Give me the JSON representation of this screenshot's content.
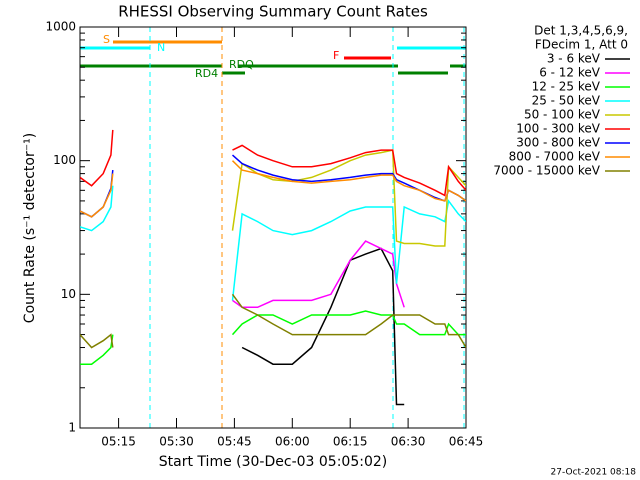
{
  "chart_data": {
    "type": "line",
    "title": "RHESSI Observing Summary Count Rates",
    "x_label": "Start Time (30-Dec-03 05:05:02)",
    "y_label": "Count Rate (s⁻¹ detector⁻¹)",
    "legend_header": [
      "Det 1,3,4,5,6,9,",
      "FDecim 1, Att 0"
    ],
    "footer": "27-Oct-2021 08:18",
    "flag_labels": [
      "S",
      "N",
      "F",
      "RDQ",
      "RD4"
    ],
    "log_y": true,
    "xlim": [
      0,
      100
    ],
    "ylim": [
      1,
      1000
    ],
    "xticks": [
      {
        "value": 10,
        "label": "05:15"
      },
      {
        "value": 25,
        "label": "05:30"
      },
      {
        "value": 40,
        "label": "05:45"
      },
      {
        "value": 55,
        "label": "06:00"
      },
      {
        "value": 70,
        "label": "06:15"
      },
      {
        "value": 85,
        "label": "06:30"
      },
      {
        "value": 100,
        "label": "06:45"
      }
    ],
    "yticks": [
      1,
      10,
      100,
      1000
    ],
    "x": [
      0,
      3,
      6,
      8,
      8.5,
      20,
      39.5,
      42,
      46,
      50,
      55,
      60,
      65,
      70,
      74,
      78,
      81,
      82,
      84,
      88,
      92,
      94.5,
      95.5,
      98,
      100
    ],
    "series": [
      {
        "name": "3 - 6 keV",
        "color": "#000000",
        "values": [
          null,
          null,
          null,
          null,
          null,
          null,
          null,
          4,
          3.5,
          3,
          3,
          4,
          8,
          18,
          20,
          22,
          15,
          1.5,
          1.5,
          null,
          null,
          null,
          null,
          null,
          null
        ]
      },
      {
        "name": "6 - 12 keV",
        "color": "#ff00ff",
        "values": [
          null,
          null,
          null,
          null,
          null,
          null,
          9,
          8,
          8,
          9,
          9,
          9,
          10,
          18,
          25,
          22,
          20,
          12,
          8,
          null,
          null,
          null,
          null,
          null,
          null
        ]
      },
      {
        "name": "12 - 25 keV",
        "color": "#00ff00",
        "values": [
          3,
          3,
          3.5,
          4,
          5,
          null,
          5,
          6,
          7,
          7,
          6,
          7,
          7,
          7,
          7.5,
          7,
          7,
          6,
          6,
          5,
          5,
          5,
          6,
          5,
          5
        ]
      },
      {
        "name": "25 - 50 keV",
        "color": "#00ffff",
        "values": [
          32,
          30,
          35,
          45,
          65,
          null,
          9,
          40,
          35,
          30,
          28,
          30,
          35,
          42,
          45,
          45,
          45,
          12,
          45,
          40,
          38,
          35,
          50,
          40,
          35
        ]
      },
      {
        "name": "50 - 100 keV",
        "color": "#c8c800",
        "values": [
          null,
          null,
          null,
          null,
          null,
          null,
          30,
          95,
          80,
          72,
          70,
          75,
          85,
          100,
          110,
          115,
          120,
          25,
          24,
          24,
          23,
          23,
          90,
          75,
          65
        ]
      },
      {
        "name": "100 - 300 keV",
        "color": "#ff0000",
        "values": [
          75,
          65,
          80,
          110,
          170,
          null,
          120,
          130,
          110,
          100,
          90,
          90,
          95,
          105,
          115,
          120,
          120,
          80,
          75,
          68,
          60,
          55,
          90,
          70,
          60
        ]
      },
      {
        "name": "300 - 800 keV",
        "color": "#0000ff",
        "values": [
          42,
          38,
          45,
          62,
          85,
          null,
          110,
          95,
          85,
          78,
          72,
          70,
          72,
          75,
          78,
          80,
          80,
          72,
          68,
          60,
          53,
          50,
          60,
          55,
          50
        ]
      },
      {
        "name": "800 - 7000 keV",
        "color": "#ff8c00",
        "values": [
          42,
          38,
          45,
          60,
          80,
          null,
          100,
          85,
          80,
          75,
          70,
          68,
          70,
          72,
          75,
          78,
          78,
          70,
          65,
          60,
          52,
          50,
          60,
          55,
          50
        ]
      },
      {
        "name": "7000 - 15000 keV",
        "color": "#808000",
        "values": [
          5,
          4,
          4.5,
          5,
          4,
          null,
          10,
          8,
          7,
          6,
          5,
          5,
          5,
          5,
          5,
          6,
          7,
          7,
          7,
          7,
          6,
          6,
          5,
          5,
          4
        ]
      }
    ]
  }
}
